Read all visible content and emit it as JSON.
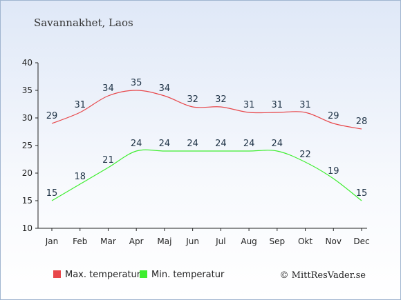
{
  "title": "Savannakhet, Laos",
  "credit": "© MittResVader.se",
  "chart_data": {
    "type": "line",
    "categories": [
      "Jan",
      "Feb",
      "Mar",
      "Apr",
      "Maj",
      "Jun",
      "Jul",
      "Aug",
      "Sep",
      "Okt",
      "Nov",
      "Dec"
    ],
    "ylim": [
      10,
      40
    ],
    "yticks": [
      10,
      15,
      20,
      25,
      30,
      35,
      40
    ],
    "grid": false,
    "legend_position": "bottom-left",
    "series": [
      {
        "name": "Max. temperatur",
        "color": "#e8474a",
        "values": [
          29,
          31,
          34,
          35,
          34,
          32,
          32,
          31,
          31,
          31,
          29,
          28
        ]
      },
      {
        "name": "Min. temperatur",
        "color": "#3dee2e",
        "values": [
          15,
          18,
          21,
          24,
          24,
          24,
          24,
          24,
          24,
          22,
          19,
          15
        ]
      }
    ]
  }
}
